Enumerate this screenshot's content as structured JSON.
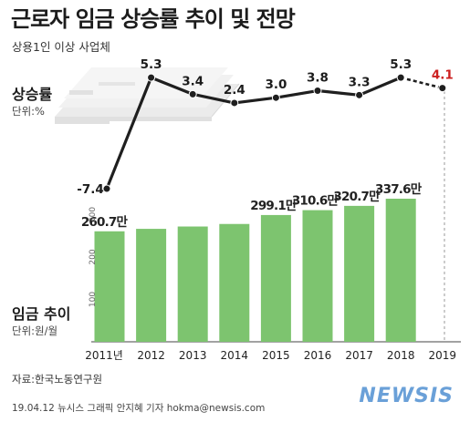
{
  "header": {
    "title": "근로자 임금 상승률 추이 및 전망",
    "subtitle": "상용1인 이상 사업체"
  },
  "growth_section": {
    "label": "상승률",
    "unit": "단위:%"
  },
  "wage_section": {
    "label": "임금 추이",
    "unit": "단위:원/월"
  },
  "footer": {
    "source": "자료:한국노동연구원",
    "credit": "19.04.12 뉴시스 그래픽 안지혜 기자 hokma@newsis.com",
    "logo": "NEWSIS"
  },
  "colors": {
    "bar": "#7dc46f",
    "line": "#1f1f1f",
    "forecast_label": "#cc1f1f",
    "grid_text": "#666666"
  },
  "chart_data": [
    {
      "type": "line",
      "x": [
        "2011년",
        "2012",
        "2013",
        "2014",
        "2015",
        "2016",
        "2017",
        "2018",
        "2019"
      ],
      "values": [
        -7.4,
        5.3,
        3.4,
        2.4,
        3.0,
        3.8,
        3.3,
        5.3,
        4.1
      ],
      "labels": [
        "-7.4",
        "5.3",
        "3.4",
        "2.4",
        "3.0",
        "3.8",
        "3.3",
        "5.3",
        "4.1"
      ],
      "forecast_from_index": 7,
      "forecast_label_color": "#cc1f1f"
    },
    {
      "type": "bar",
      "categories": [
        "2011년",
        "2012",
        "2013",
        "2014",
        "2015",
        "2016",
        "2017",
        "2018",
        "2019"
      ],
      "values": [
        260.7,
        266.5,
        272.0,
        278.0,
        299.1,
        310.6,
        320.7,
        337.6,
        null
      ],
      "labels": [
        "260.7만",
        "",
        "",
        "",
        "299.1만",
        "310.6만",
        "320.7만",
        "337.6만",
        ""
      ],
      "y_ticks": [
        "100",
        "200",
        "300"
      ],
      "ylim": [
        0,
        350
      ]
    }
  ]
}
